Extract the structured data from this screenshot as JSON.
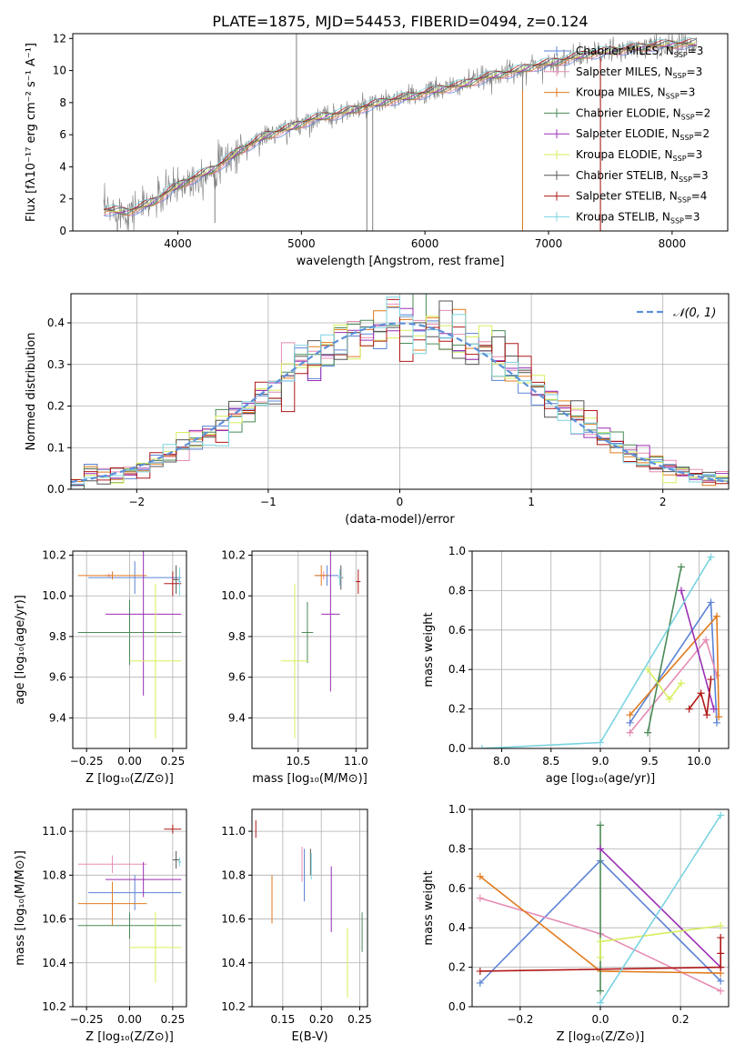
{
  "title": "PLATE=1875, MJD=54453, FIBERID=0494, z=0.124",
  "colors": {
    "chabrier_miles": "#5b83d6",
    "salpeter_miles": "#e58cb4",
    "kroupa_miles": "#e07b1f",
    "chabrier_elodie": "#4a8a57",
    "salpeter_elodie": "#9b2fb5",
    "kroupa_elodie": "#d7ef5e",
    "chabrier_stelib": "#555555",
    "salpeter_stelib": "#b01818",
    "kroupa_stelib": "#79d3e0",
    "normal": "#5b8fd9"
  },
  "chart_data": [
    {
      "id": "spectrum",
      "type": "line",
      "title": "PLATE=1875, MJD=54453, FIBERID=0494, z=0.124",
      "xlabel": "wavelength [Angstrom, rest frame]",
      "ylabel": "Flux [fλ10⁻¹⁷ erg cm⁻² s⁻¹ A⁻¹]",
      "xlim": [
        3150,
        8450
      ],
      "ylim": [
        0,
        12.3
      ],
      "xticks": [
        "4000",
        "5000",
        "6000",
        "7000",
        "8000"
      ],
      "xtick_values": [
        4000,
        5000,
        6000,
        7000,
        8000
      ],
      "yticks": [
        "0",
        "2",
        "4",
        "6",
        "8",
        "10",
        "12"
      ],
      "ytick_values": [
        0,
        2,
        4,
        6,
        8,
        10,
        12
      ],
      "grid": false,
      "legend_position": "top-right",
      "continuum": [
        [
          3400,
          1.3
        ],
        [
          3600,
          1.2
        ],
        [
          3800,
          1.8
        ],
        [
          3950,
          2.6
        ],
        [
          4100,
          3.2
        ],
        [
          4300,
          3.9
        ],
        [
          4500,
          5.0
        ],
        [
          4700,
          5.9
        ],
        [
          4900,
          6.4
        ],
        [
          5100,
          7.0
        ],
        [
          5300,
          7.3
        ],
        [
          5500,
          7.7
        ],
        [
          5700,
          8.1
        ],
        [
          5900,
          8.4
        ],
        [
          6100,
          8.8
        ],
        [
          6300,
          9.1
        ],
        [
          6500,
          9.6
        ],
        [
          6700,
          9.9
        ],
        [
          6900,
          10.3
        ],
        [
          7100,
          10.6
        ],
        [
          7300,
          11.0
        ],
        [
          7500,
          11.2
        ],
        [
          7700,
          11.4
        ],
        [
          7900,
          11.6
        ],
        [
          8200,
          11.7
        ]
      ],
      "spikes": [
        [
          4960,
          12.3
        ],
        [
          5530,
          0
        ],
        [
          6790,
          0
        ],
        [
          7420,
          0
        ],
        [
          4300,
          0.5
        ],
        [
          5577,
          0
        ]
      ],
      "series": [
        {
          "name": "Chabrier MILES, N",
          "sub": "SSP",
          "suffix": "=3",
          "color_key": "chabrier_miles"
        },
        {
          "name": "Salpeter MILES, N",
          "sub": "SSP",
          "suffix": "=3",
          "color_key": "salpeter_miles"
        },
        {
          "name": "Kroupa MILES, N",
          "sub": "SSP",
          "suffix": "=3",
          "color_key": "kroupa_miles"
        },
        {
          "name": "Chabrier ELODIE, N",
          "sub": "SSP",
          "suffix": "=2",
          "color_key": "chabrier_elodie"
        },
        {
          "name": "Salpeter ELODIE, N",
          "sub": "SSP",
          "suffix": "=2",
          "color_key": "salpeter_elodie"
        },
        {
          "name": "Kroupa ELODIE, N",
          "sub": "SSP",
          "suffix": "=3",
          "color_key": "kroupa_elodie"
        },
        {
          "name": "Chabrier STELIB, N",
          "sub": "SSP",
          "suffix": "=3",
          "color_key": "chabrier_stelib"
        },
        {
          "name": "Salpeter STELIB, N",
          "sub": "SSP",
          "suffix": "=4",
          "color_key": "salpeter_stelib"
        },
        {
          "name": "Kroupa STELIB, N",
          "sub": "SSP",
          "suffix": "=3",
          "color_key": "kroupa_stelib"
        }
      ]
    },
    {
      "id": "residuals",
      "type": "step",
      "xlabel": "(data-model)/error",
      "ylabel": "Normed distribution",
      "xlim": [
        -2.5,
        2.5
      ],
      "ylim": [
        0,
        0.47
      ],
      "xticks": [
        "−2",
        "−1",
        "0",
        "1",
        "2"
      ],
      "xtick_values": [
        -2,
        -1,
        0,
        1,
        2
      ],
      "yticks": [
        "0.0",
        "0.1",
        "0.2",
        "0.3",
        "0.4"
      ],
      "ytick_values": [
        0,
        0.1,
        0.2,
        0.3,
        0.4
      ],
      "grid": true,
      "legend": "𝒩(0, 1)",
      "bin_width": 0.1,
      "normal": {
        "mean": 0,
        "sigma": 1
      }
    },
    {
      "id": "age_vs_z",
      "type": "errorbar",
      "xlabel": "Z [log₁₀(Z/Z⊙)]",
      "ylabel": "age  [log₁₀(age/yr)]",
      "xlim": [
        -0.33,
        0.33
      ],
      "ylim": [
        9.25,
        10.22
      ],
      "xticks": [
        "−0.25",
        "0.00",
        "0.25"
      ],
      "xtick_values": [
        -0.25,
        0,
        0.25
      ],
      "yticks": [
        "9.4",
        "9.6",
        "9.8",
        "10.0",
        "10.2"
      ],
      "ytick_values": [
        9.4,
        9.6,
        9.8,
        10.0,
        10.2
      ],
      "points": [
        {
          "c": "chabrier_miles",
          "x": 0.03,
          "xe": 0.27,
          "y": 10.09,
          "ye": 0.08
        },
        {
          "c": "salpeter_miles",
          "x": -0.12,
          "xe": 0.02,
          "y": 10.1,
          "ye": 0.01
        },
        {
          "c": "kroupa_miles",
          "x": -0.1,
          "xe": 0.2,
          "y": 10.1,
          "ye": 0.02
        },
        {
          "c": "chabrier_elodie",
          "x": 0.0,
          "xe": 0.3,
          "y": 9.82,
          "ye": 0.16
        },
        {
          "c": "salpeter_elodie",
          "x": 0.08,
          "xe": 0.22,
          "y": 9.91,
          "ye": 0.4
        },
        {
          "c": "kroupa_elodie",
          "x": 0.15,
          "xe": 0.15,
          "y": 9.68,
          "ye": 0.38
        },
        {
          "c": "chabrier_stelib",
          "x": 0.27,
          "xe": 0.02,
          "y": 10.08,
          "ye": 0.07
        },
        {
          "c": "salpeter_stelib",
          "x": 0.25,
          "xe": 0.05,
          "y": 10.06,
          "ye": 0.06
        },
        {
          "c": "kroupa_stelib",
          "x": 0.29,
          "xe": 0.01,
          "y": 10.07,
          "ye": 0.07
        }
      ]
    },
    {
      "id": "age_vs_mass",
      "type": "errorbar",
      "xlabel": "mass [log₁₀(M/M⊙)]",
      "ylabel": "",
      "xlim": [
        10.1,
        11.1
      ],
      "ylim": [
        9.25,
        10.22
      ],
      "xticks": [
        "10.5",
        "11.0"
      ],
      "xtick_values": [
        10.5,
        11.0
      ],
      "yticks": [
        "9.4",
        "9.6",
        "9.8",
        "10.0",
        "10.2"
      ],
      "ytick_values": [
        9.4,
        9.6,
        9.8,
        10.0,
        10.2
      ],
      "points": [
        {
          "c": "chabrier_miles",
          "x": 10.75,
          "xe": 0.1,
          "y": 10.1,
          "ye": 0.05
        },
        {
          "c": "salpeter_miles",
          "x": 10.72,
          "xe": 0.02,
          "y": 10.1,
          "ye": 0.02
        },
        {
          "c": "kroupa_miles",
          "x": 10.7,
          "xe": 0.06,
          "y": 10.1,
          "ye": 0.05
        },
        {
          "c": "chabrier_elodie",
          "x": 10.58,
          "xe": 0.05,
          "y": 9.82,
          "ye": 0.15
        },
        {
          "c": "salpeter_elodie",
          "x": 10.78,
          "xe": 0.08,
          "y": 9.91,
          "ye": 0.38
        },
        {
          "c": "kroupa_elodie",
          "x": 10.47,
          "xe": 0.12,
          "y": 9.68,
          "ye": 0.38
        },
        {
          "c": "chabrier_stelib",
          "x": 10.87,
          "xe": 0.02,
          "y": 10.09,
          "ye": 0.06
        },
        {
          "c": "salpeter_stelib",
          "x": 11.02,
          "xe": 0.02,
          "y": 10.07,
          "ye": 0.06
        },
        {
          "c": "kroupa_stelib",
          "x": 10.86,
          "xe": 0.02,
          "y": 10.09,
          "ye": 0.04
        }
      ]
    },
    {
      "id": "weight_vs_age",
      "type": "line",
      "xlabel": "age  [log₁₀(age/yr)]",
      "ylabel": "mass weight",
      "xlim": [
        7.7,
        10.3
      ],
      "ylim": [
        0,
        1.0
      ],
      "xticks": [
        "8.0",
        "8.5",
        "9.0",
        "9.5",
        "10.0"
      ],
      "xtick_values": [
        8.0,
        8.5,
        9.0,
        9.5,
        10.0
      ],
      "yticks": [
        "0.0",
        "0.2",
        "0.4",
        "0.6",
        "0.8",
        "1.0"
      ],
      "ytick_values": [
        0,
        0.2,
        0.4,
        0.6,
        0.8,
        1.0
      ],
      "grid": true,
      "series": [
        {
          "c": "chabrier_miles",
          "pts": [
            [
              9.3,
              0.13
            ],
            [
              10.12,
              0.74
            ],
            [
              10.18,
              0.13
            ]
          ]
        },
        {
          "c": "salpeter_miles",
          "pts": [
            [
              9.3,
              0.08
            ],
            [
              10.07,
              0.55
            ],
            [
              10.18,
              0.37
            ]
          ]
        },
        {
          "c": "kroupa_miles",
          "pts": [
            [
              9.3,
              0.17
            ],
            [
              10.18,
              0.67
            ],
            [
              10.2,
              0.16
            ]
          ]
        },
        {
          "c": "chabrier_elodie",
          "pts": [
            [
              9.48,
              0.08
            ],
            [
              9.82,
              0.92
            ]
          ]
        },
        {
          "c": "salpeter_elodie",
          "pts": [
            [
              9.82,
              0.8
            ],
            [
              10.15,
              0.2
            ]
          ]
        },
        {
          "c": "kroupa_elodie",
          "pts": [
            [
              9.48,
              0.4
            ],
            [
              9.7,
              0.25
            ],
            [
              9.82,
              0.33
            ]
          ]
        },
        {
          "c": "salpeter_stelib",
          "pts": [
            [
              9.9,
              0.2
            ],
            [
              10.02,
              0.28
            ],
            [
              10.08,
              0.17
            ],
            [
              10.12,
              0.35
            ]
          ]
        },
        {
          "c": "kroupa_stelib",
          "pts": [
            [
              7.8,
              0.0
            ],
            [
              9.0,
              0.03
            ],
            [
              10.12,
              0.97
            ]
          ]
        }
      ]
    },
    {
      "id": "mass_vs_z",
      "type": "errorbar",
      "xlabel": "Z [log₁₀(Z/Z⊙)]",
      "ylabel": "mass [log₁₀(M/M⊙)]",
      "xlim": [
        -0.33,
        0.33
      ],
      "ylim": [
        10.2,
        11.1
      ],
      "xticks": [
        "−0.25",
        "0.00",
        "0.25"
      ],
      "xtick_values": [
        -0.25,
        0,
        0.25
      ],
      "yticks": [
        "10.2",
        "10.4",
        "10.6",
        "10.8",
        "11.0"
      ],
      "ytick_values": [
        10.2,
        10.4,
        10.6,
        10.8,
        11.0
      ],
      "points": [
        {
          "c": "chabrier_miles",
          "x": 0.03,
          "xe": 0.27,
          "y": 10.72,
          "ye": 0.08
        },
        {
          "c": "salpeter_miles",
          "x": -0.1,
          "xe": 0.2,
          "y": 10.85,
          "ye": 0.04
        },
        {
          "c": "kroupa_miles",
          "x": -0.1,
          "xe": 0.2,
          "y": 10.67,
          "ye": 0.1
        },
        {
          "c": "chabrier_elodie",
          "x": 0.0,
          "xe": 0.3,
          "y": 10.57,
          "ye": 0.06
        },
        {
          "c": "salpeter_elodie",
          "x": 0.08,
          "xe": 0.22,
          "y": 10.78,
          "ye": 0.08
        },
        {
          "c": "kroupa_elodie",
          "x": 0.15,
          "xe": 0.15,
          "y": 10.47,
          "ye": 0.16
        },
        {
          "c": "chabrier_stelib",
          "x": 0.27,
          "xe": 0.02,
          "y": 10.87,
          "ye": 0.04
        },
        {
          "c": "salpeter_stelib",
          "x": 0.25,
          "xe": 0.05,
          "y": 11.01,
          "ye": 0.02
        },
        {
          "c": "kroupa_stelib",
          "x": 0.29,
          "xe": 0.01,
          "y": 10.86,
          "ye": 0.02
        }
      ]
    },
    {
      "id": "mass_vs_ebv",
      "type": "errorbar",
      "xlabel": "E(B-V)",
      "ylabel": "",
      "xlim": [
        0.11,
        0.26
      ],
      "ylim": [
        10.2,
        11.1
      ],
      "xticks": [
        "0.15",
        "0.20",
        "0.25"
      ],
      "xtick_values": [
        0.15,
        0.2,
        0.25
      ],
      "yticks": [
        "10.2",
        "10.4",
        "10.6",
        "10.8",
        "11.0"
      ],
      "ytick_values": [
        10.2,
        10.4,
        10.6,
        10.8,
        11.0
      ],
      "points": [
        {
          "c": "chabrier_miles",
          "x": 0.178,
          "y": 10.8,
          "ye": 0.12
        },
        {
          "c": "salpeter_miles",
          "x": 0.175,
          "y": 10.85,
          "ye": 0.08
        },
        {
          "c": "kroupa_miles",
          "x": 0.136,
          "y": 10.69,
          "ye": 0.11
        },
        {
          "c": "chabrier_elodie",
          "x": 0.253,
          "y": 10.54,
          "ye": 0.09
        },
        {
          "c": "salpeter_elodie",
          "x": 0.213,
          "y": 10.69,
          "ye": 0.15
        },
        {
          "c": "kroupa_elodie",
          "x": 0.234,
          "y": 10.4,
          "ye": 0.16
        },
        {
          "c": "chabrier_stelib",
          "x": 0.186,
          "y": 10.86,
          "ye": 0.06
        },
        {
          "c": "salpeter_stelib",
          "x": 0.115,
          "y": 11.01,
          "ye": 0.04
        },
        {
          "c": "kroupa_stelib",
          "x": 0.187,
          "y": 10.84,
          "ye": 0.06
        }
      ]
    },
    {
      "id": "weight_vs_z",
      "type": "line",
      "xlabel": "Z [log₁₀(Z/Z⊙)]",
      "ylabel": "mass weight",
      "xlim": [
        -0.32,
        0.32
      ],
      "ylim": [
        0,
        1.0
      ],
      "xticks": [
        "−0.2",
        "0.0",
        "0.2"
      ],
      "xtick_values": [
        -0.2,
        0,
        0.2
      ],
      "yticks": [
        "0.0",
        "0.2",
        "0.4",
        "0.6",
        "0.8",
        "1.0"
      ],
      "ytick_values": [
        0,
        0.2,
        0.4,
        0.6,
        0.8,
        1.0
      ],
      "grid": true,
      "series": [
        {
          "c": "chabrier_miles",
          "pts": [
            [
              -0.3,
              0.12
            ],
            [
              0.0,
              0.74
            ],
            [
              0.3,
              0.13
            ]
          ]
        },
        {
          "c": "salpeter_miles",
          "pts": [
            [
              -0.3,
              0.55
            ],
            [
              0.0,
              0.37
            ],
            [
              0.3,
              0.08
            ]
          ]
        },
        {
          "c": "kroupa_miles",
          "pts": [
            [
              -0.3,
              0.66
            ],
            [
              0.0,
              0.18
            ],
            [
              0.3,
              0.17
            ]
          ]
        },
        {
          "c": "chabrier_elodie",
          "pts": [
            [
              0.0,
              0.08
            ],
            [
              0.0,
              0.92
            ]
          ]
        },
        {
          "c": "salpeter_elodie",
          "pts": [
            [
              0.0,
              0.8
            ],
            [
              0.3,
              0.2
            ]
          ]
        },
        {
          "c": "kroupa_elodie",
          "pts": [
            [
              0.0,
              0.25
            ],
            [
              0.0,
              0.33
            ],
            [
              0.3,
              0.41
            ]
          ]
        },
        {
          "c": "salpeter_stelib",
          "pts": [
            [
              -0.3,
              0.18
            ],
            [
              0.3,
              0.2
            ],
            [
              0.3,
              0.27
            ],
            [
              0.3,
              0.35
            ]
          ]
        },
        {
          "c": "kroupa_stelib",
          "pts": [
            [
              0.0,
              0.02
            ],
            [
              0.3,
              0.97
            ]
          ]
        }
      ]
    }
  ]
}
